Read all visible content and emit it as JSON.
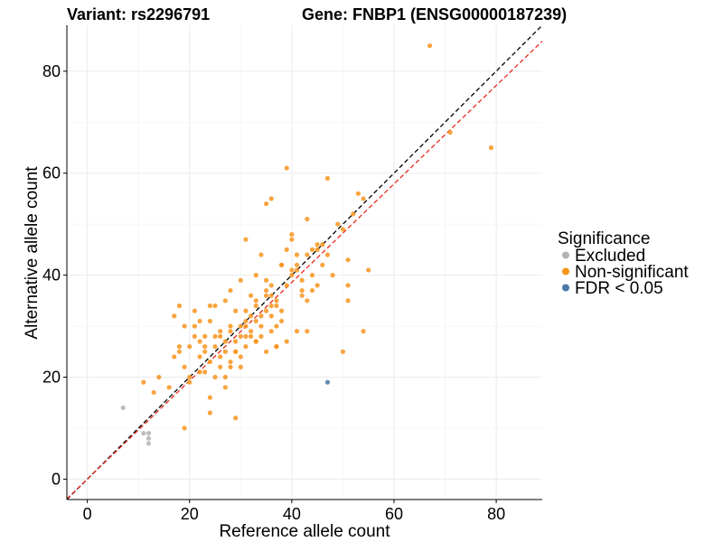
{
  "chart_data": {
    "type": "scatter",
    "title_left": "Variant: rs2296791",
    "title_right": "Gene: FNBP1 (ENSG00000187239)",
    "xlabel": "Reference allele count",
    "ylabel": "Alternative allele count",
    "xlim": [
      -4,
      89
    ],
    "ylim": [
      -4,
      89
    ],
    "xticks": [
      0,
      20,
      40,
      60,
      80
    ],
    "yticks": [
      0,
      20,
      40,
      60,
      80
    ],
    "grid": true,
    "legend": {
      "title": "Significance",
      "position": "right",
      "entries": [
        {
          "label": "Excluded",
          "color": "#b3b3b3"
        },
        {
          "label": "Non-significant",
          "color": "#f7941d"
        },
        {
          "label": "FDR < 0.05",
          "color": "#4a77a8"
        }
      ]
    },
    "reference_lines": [
      {
        "name": "identity",
        "slope": 1,
        "intercept": 0,
        "color": "#000000",
        "dash": true
      },
      {
        "name": "fit",
        "slope": 0.965,
        "intercept": 0,
        "color": "#e8281e",
        "dash": true
      }
    ],
    "series": [
      {
        "name": "Excluded",
        "color": "#b3b3b3",
        "x": [
          7,
          11,
          12,
          12,
          12
        ],
        "y": [
          14,
          9,
          9,
          8,
          7
        ]
      },
      {
        "name": "FDR < 0.05",
        "color": "#4a77a8",
        "x": [
          47
        ],
        "y": [
          19
        ]
      },
      {
        "name": "Non-significant",
        "color": "#f7941d",
        "x": [
          67,
          71,
          79,
          39,
          47,
          53,
          35,
          36,
          52,
          54,
          43,
          31,
          49,
          50,
          51,
          51,
          46,
          44,
          47,
          55,
          40,
          41,
          43,
          45,
          11,
          13,
          14,
          16,
          17,
          18,
          18,
          19,
          19,
          20,
          20,
          21,
          21,
          22,
          22,
          23,
          23,
          24,
          24,
          24,
          25,
          25,
          26,
          26,
          27,
          27,
          27,
          28,
          28,
          28,
          29,
          29,
          30,
          30,
          30,
          31,
          31,
          32,
          32,
          33,
          33,
          33,
          34,
          34,
          35,
          35,
          35,
          36,
          36,
          37,
          37,
          38,
          38,
          39,
          39,
          40,
          40,
          41,
          41,
          42,
          42,
          43,
          43,
          44,
          45,
          45,
          46,
          48,
          50,
          51,
          54,
          24,
          25,
          26,
          28,
          29,
          31,
          32,
          33,
          34,
          36,
          37,
          38,
          40,
          42,
          44,
          20,
          22,
          24,
          26,
          27,
          28,
          29,
          30,
          31,
          32,
          33,
          34,
          35,
          36,
          37,
          38,
          39,
          41,
          19,
          21,
          23,
          25,
          27,
          29,
          31,
          33,
          35,
          37,
          17,
          18,
          22,
          23,
          30,
          36
        ],
        "y": [
          85,
          68,
          65,
          61,
          59,
          56,
          54,
          55,
          52,
          55,
          51,
          47,
          50,
          49,
          43,
          38,
          46,
          45,
          44,
          41,
          47,
          42,
          44,
          46,
          19,
          17,
          20,
          18,
          24,
          26,
          34,
          22,
          30,
          19,
          26,
          28,
          33,
          24,
          31,
          21,
          28,
          13,
          23,
          31,
          26,
          34,
          22,
          28,
          18,
          27,
          35,
          23,
          29,
          37,
          12,
          27,
          24,
          30,
          39,
          26,
          33,
          29,
          36,
          27,
          31,
          40,
          28,
          44,
          25,
          33,
          37,
          29,
          38,
          26,
          35,
          31,
          42,
          27,
          38,
          40,
          48,
          29,
          44,
          36,
          39,
          35,
          29,
          40,
          38,
          45,
          42,
          40,
          25,
          35,
          29,
          16,
          20,
          24,
          22,
          25,
          31,
          28,
          27,
          32,
          36,
          34,
          33,
          41,
          37,
          37,
          20,
          27,
          34,
          29,
          20,
          30,
          25,
          22,
          28,
          32,
          35,
          30,
          36,
          34,
          26,
          42,
          45,
          41,
          10,
          30,
          25,
          28,
          25,
          33,
          30,
          34,
          39,
          30,
          32,
          25,
          21,
          26,
          28,
          32
        ]
      }
    ]
  }
}
